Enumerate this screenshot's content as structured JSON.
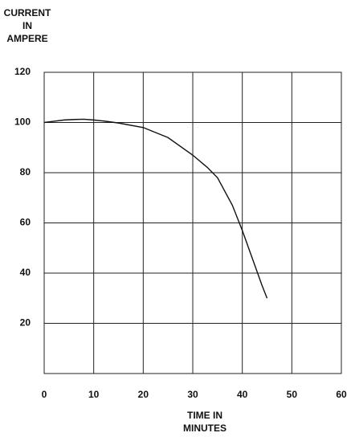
{
  "chart_data": {
    "type": "line",
    "ylabel": [
      "CURRENT",
      "IN",
      "AMPERE"
    ],
    "xlabel": [
      "TIME IN",
      "MINUTES"
    ],
    "x": [
      0,
      2,
      4,
      6,
      8,
      10,
      12,
      15,
      20,
      25,
      30,
      33,
      35,
      38,
      40,
      42,
      44,
      45
    ],
    "series": [
      {
        "color": "#111111",
        "values": [
          100,
          100.5,
          101,
          101.2,
          101.3,
          101,
          100.6,
          99.8,
          98,
          94,
          87,
          82,
          78,
          67,
          57,
          46,
          35,
          30
        ]
      }
    ],
    "xlim": [
      0,
      60
    ],
    "xticks": [
      0,
      10,
      20,
      30,
      40,
      50,
      60
    ],
    "ylim": [
      0,
      120
    ],
    "yticks": [
      20,
      40,
      60,
      80,
      100,
      120
    ],
    "grid": true
  }
}
